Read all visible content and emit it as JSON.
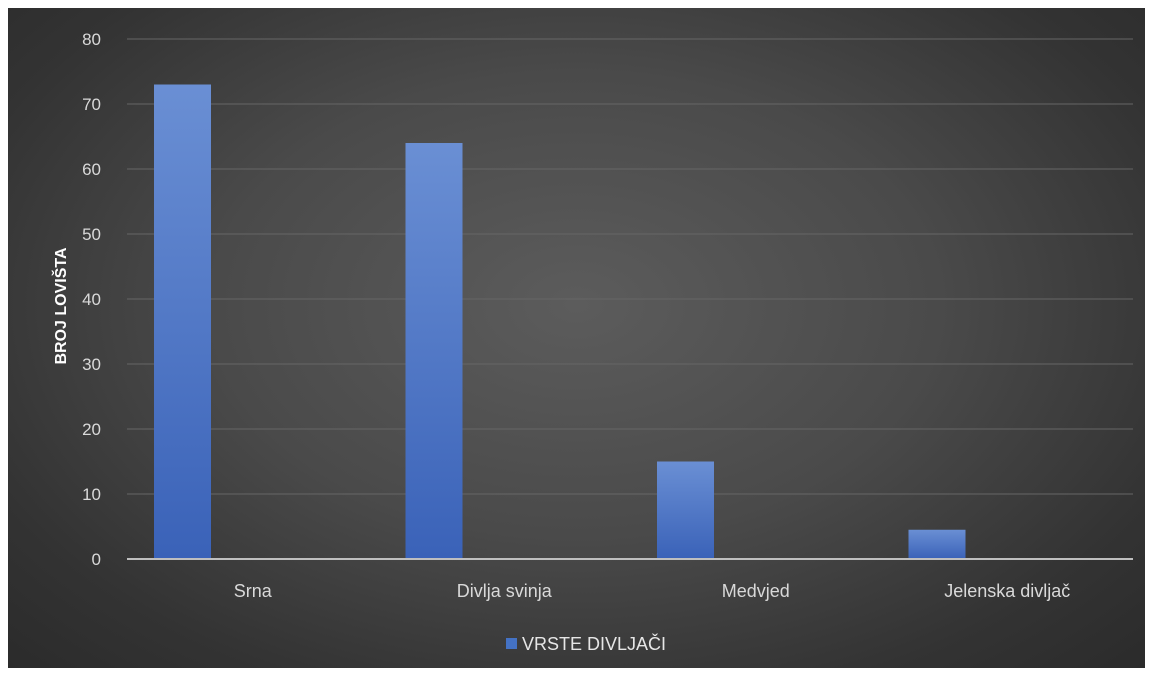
{
  "chart_data": {
    "type": "bar",
    "categories": [
      "Srna",
      "Divlja svinja",
      "Medvjed",
      "Jelenska divljač"
    ],
    "series": [
      {
        "name": "VRSTE DIVLJAČI",
        "values": [
          73,
          64,
          15,
          4.5
        ],
        "color": "#4472c4"
      }
    ],
    "xlabel": "",
    "ylabel": "BROJ LOVIŠTA",
    "ylim": [
      0,
      80
    ],
    "yticks": [
      "0",
      "10",
      "20",
      "30",
      "40",
      "50",
      "60",
      "70",
      "80"
    ],
    "grid": true,
    "legend": "bottom-center",
    "background": "#484848"
  }
}
